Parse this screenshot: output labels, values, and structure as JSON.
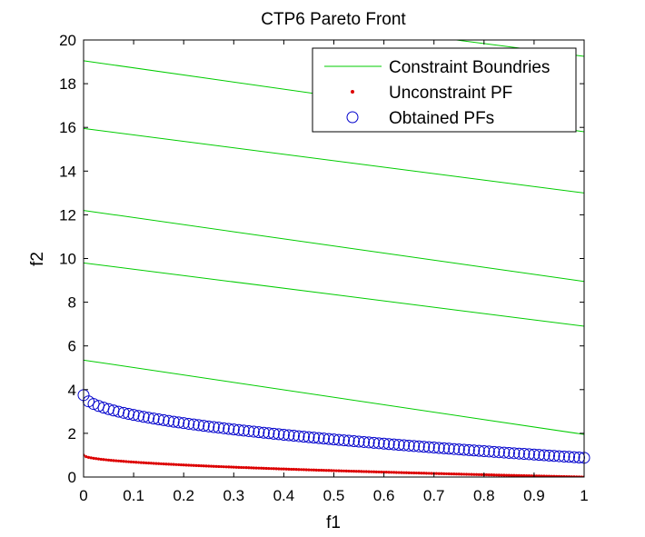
{
  "chart_data": {
    "type": "scatter",
    "title": "CTP6 Pareto Front",
    "xlabel": "f1",
    "ylabel": "f2",
    "xlim": [
      0,
      1
    ],
    "ylim": [
      0,
      20
    ],
    "xticks": [
      0,
      0.1,
      0.2,
      0.3,
      0.4,
      0.5,
      0.6,
      0.7,
      0.8,
      0.9,
      1
    ],
    "xtick_labels": [
      "0",
      "0.1",
      "0.2",
      "0.3",
      "0.4",
      "0.5",
      "0.6",
      "0.7",
      "0.8",
      "0.9",
      "1"
    ],
    "yticks": [
      0,
      2,
      4,
      6,
      8,
      10,
      12,
      14,
      16,
      18,
      20
    ],
    "ytick_labels": [
      "0",
      "2",
      "4",
      "6",
      "8",
      "10",
      "12",
      "14",
      "16",
      "18",
      "20"
    ],
    "grid": false,
    "legend_position": "top-right",
    "series": [
      {
        "name": "Constraint Boundries",
        "kind": "line",
        "color": "#00cc00",
        "lines": [
          {
            "x": [
              0,
              1
            ],
            "y": [
              5.35,
              1.95
            ]
          },
          {
            "x": [
              0,
              1
            ],
            "y": [
              9.8,
              6.9
            ]
          },
          {
            "x": [
              0,
              1
            ],
            "y": [
              12.2,
              8.95
            ]
          },
          {
            "x": [
              0,
              1
            ],
            "y": [
              15.95,
              13.0
            ]
          },
          {
            "x": [
              0,
              1
            ],
            "y": [
              19.05,
              15.8
            ]
          },
          {
            "x": [
              0.745,
              1
            ],
            "y": [
              20,
              19.25
            ]
          }
        ]
      },
      {
        "name": "Unconstraint PF",
        "kind": "points",
        "marker": "dot",
        "color": "#dd0000",
        "x_range": [
          0,
          1
        ],
        "count": 201,
        "formula": "y = 1 - sqrt(x)"
      },
      {
        "name": "Obtained PFs",
        "kind": "points",
        "marker": "open-circle",
        "color": "#0000cc",
        "x_range": [
          0,
          1
        ],
        "count": 101,
        "y_start": 3.75,
        "y_end": 0.88
      }
    ]
  }
}
